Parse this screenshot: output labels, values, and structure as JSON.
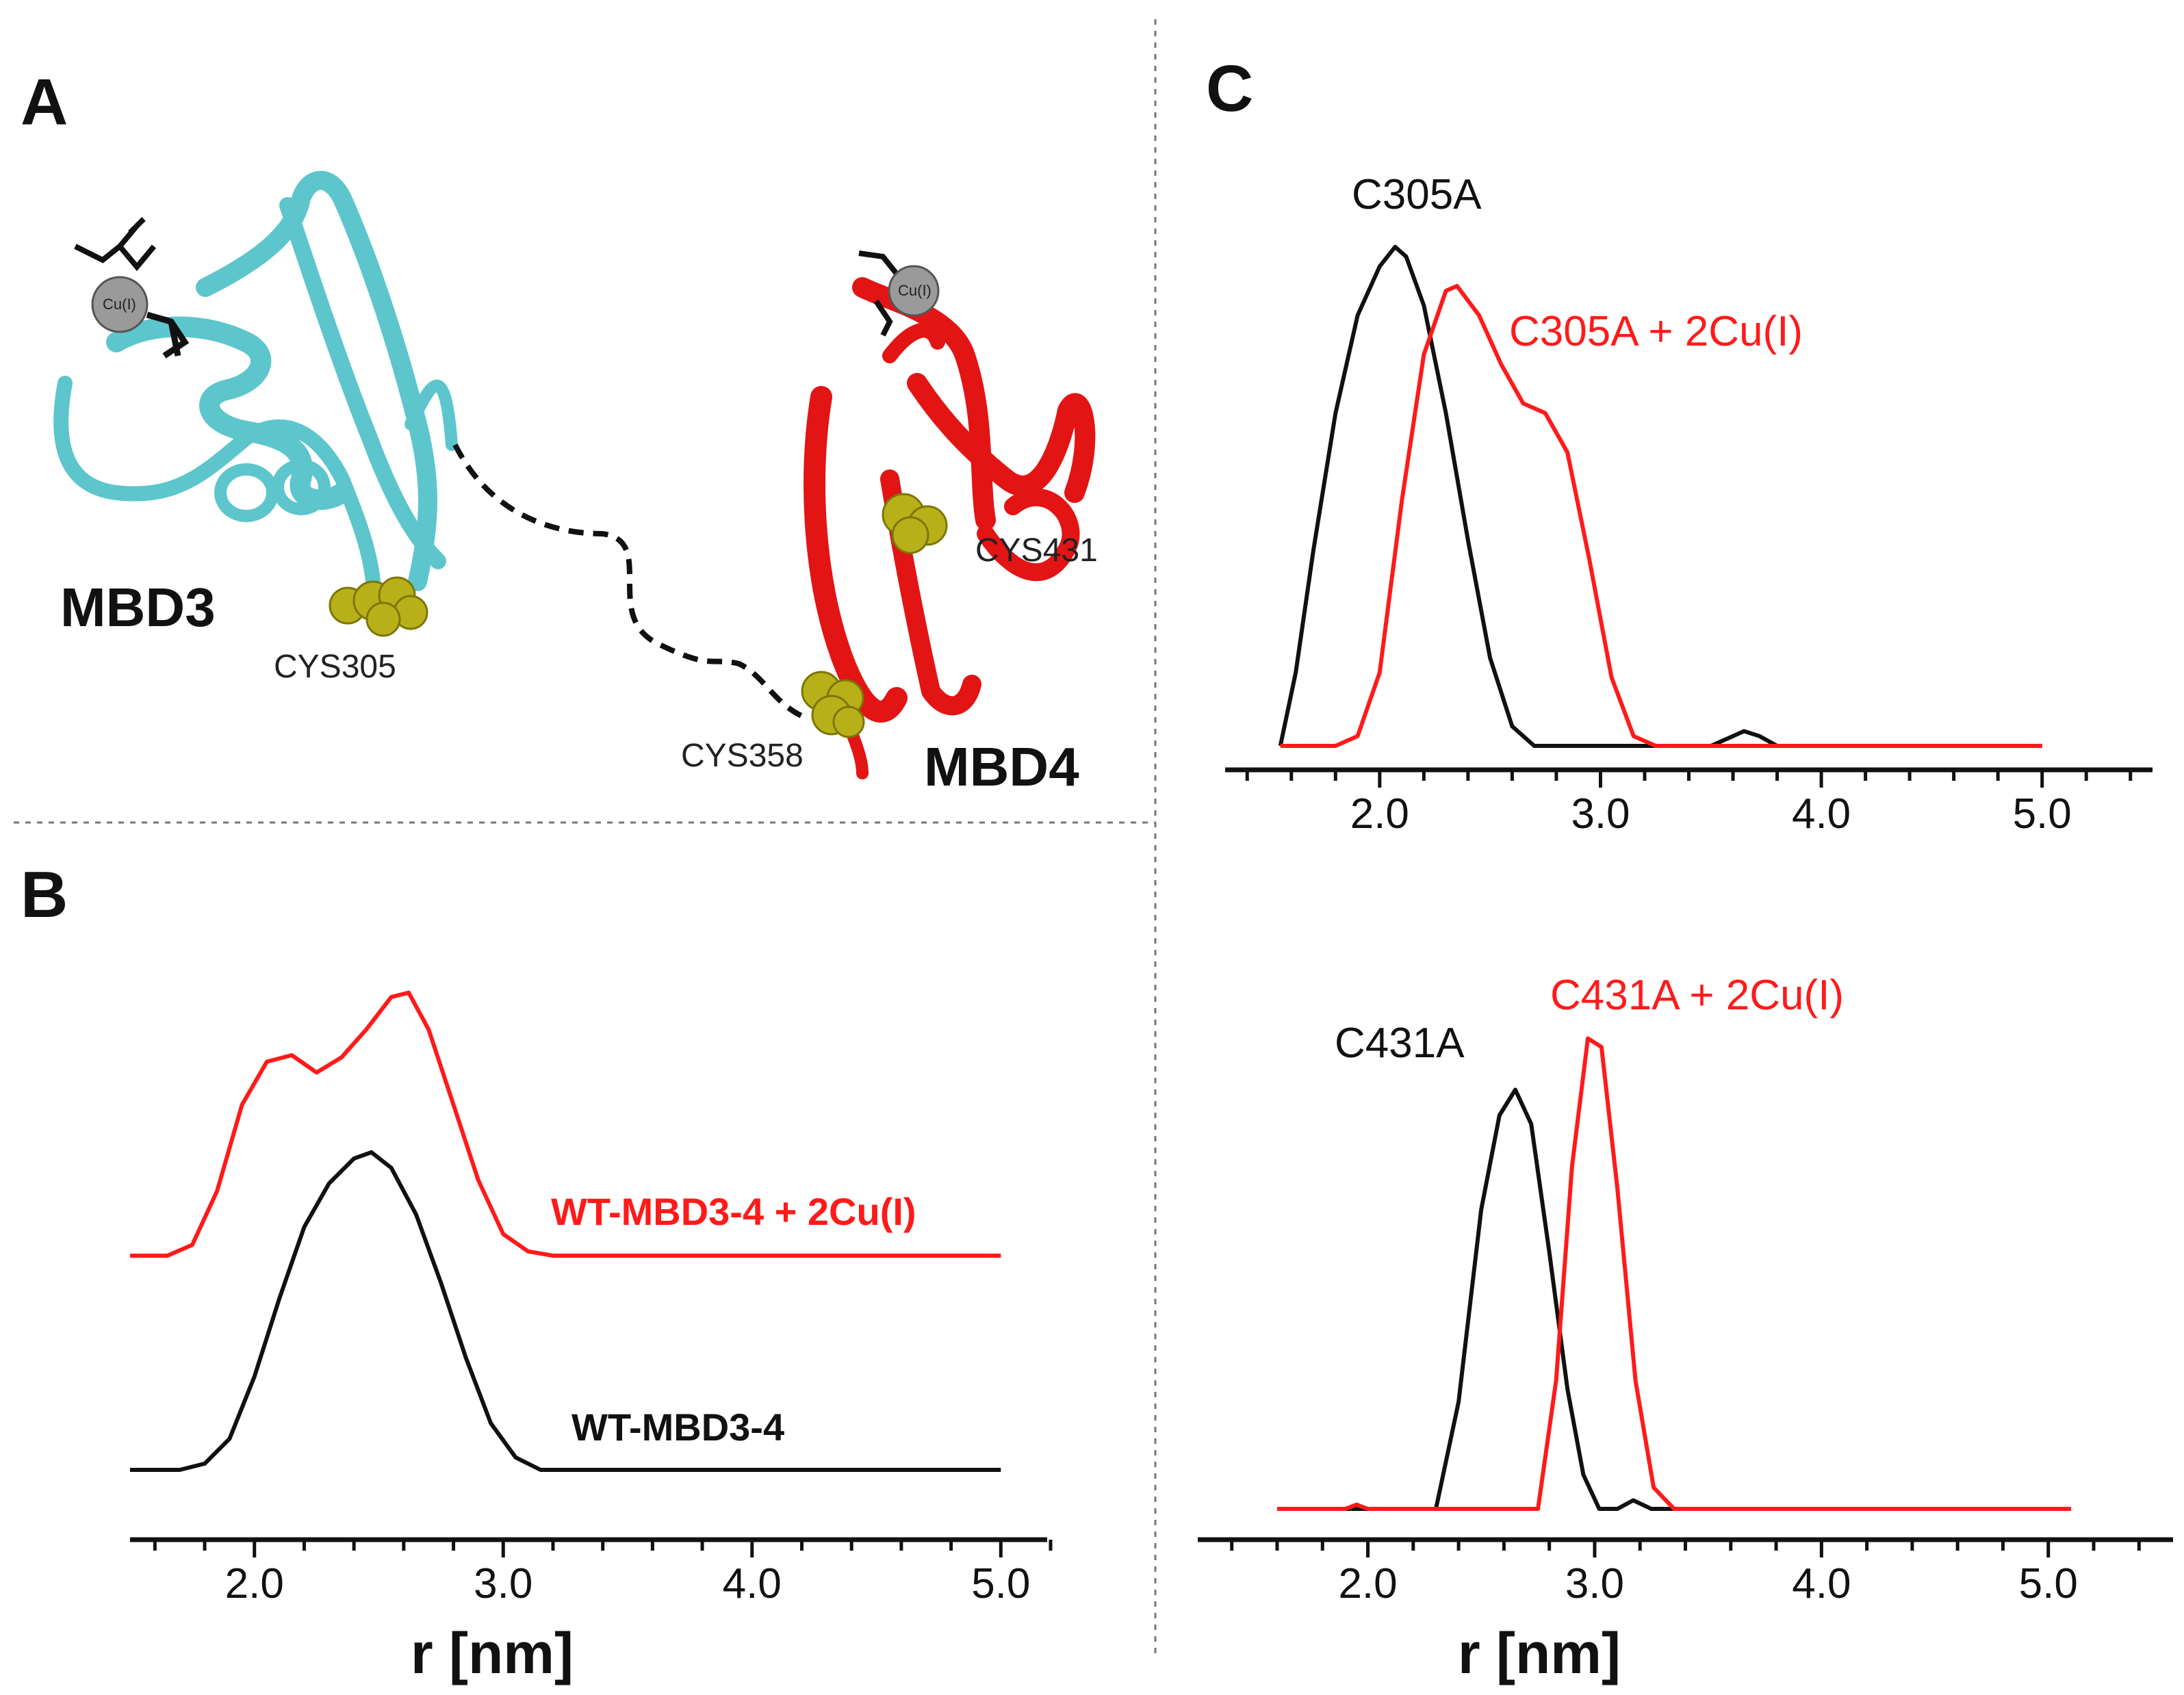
{
  "figure": {
    "panel_labels": [
      "A",
      "B",
      "C"
    ],
    "colors": {
      "black": "#111111",
      "red": "#ff1a1a",
      "cyan": "#5cc6cc",
      "ribbon_red": "#e31414",
      "yellow": "#b8b018"
    }
  },
  "structure": {
    "domains": [
      "MBD3",
      "MBD4"
    ],
    "residues": [
      "CYS305",
      "CYS358",
      "CYS431"
    ],
    "metal_label": "Cu(I)"
  },
  "chart_data": [
    {
      "id": "B",
      "type": "line",
      "title": "",
      "xlabel": "r [nm]",
      "ylabel": "",
      "xlim": [
        1.5,
        5.2
      ],
      "xticks": [
        2.0,
        3.0,
        4.0,
        5.0
      ],
      "xtick_labels": [
        "2.0",
        "3.0",
        "4.0",
        "5.0"
      ],
      "series": [
        {
          "name": "WT-MBD3-4 + 2Cu(I)",
          "color": "#ff1a1a",
          "x": [
            1.5,
            1.65,
            1.75,
            1.85,
            1.95,
            2.05,
            2.15,
            2.25,
            2.35,
            2.45,
            2.55,
            2.62,
            2.7,
            2.8,
            2.9,
            3.0,
            3.1,
            3.2,
            3.5,
            4.0,
            4.5,
            5.0
          ],
          "y": [
            0.0,
            0.0,
            0.05,
            0.3,
            0.7,
            0.9,
            0.93,
            0.85,
            0.92,
            1.05,
            1.2,
            1.22,
            1.05,
            0.7,
            0.35,
            0.1,
            0.02,
            0.0,
            0.0,
            0.0,
            0.0,
            0.0
          ]
        },
        {
          "name": "WT-MBD3-4",
          "color": "#111111",
          "x": [
            1.5,
            1.7,
            1.8,
            1.9,
            2.0,
            2.1,
            2.2,
            2.3,
            2.4,
            2.47,
            2.55,
            2.65,
            2.75,
            2.85,
            2.95,
            3.05,
            3.15,
            3.3,
            3.5,
            4.0,
            4.5,
            5.0
          ],
          "y": [
            0.0,
            0.0,
            0.02,
            0.1,
            0.3,
            0.55,
            0.78,
            0.92,
            1.0,
            1.02,
            0.97,
            0.82,
            0.6,
            0.36,
            0.15,
            0.04,
            0.0,
            0.0,
            0.0,
            0.0,
            0.0,
            0.0
          ]
        }
      ]
    },
    {
      "id": "C-top",
      "type": "line",
      "title": "",
      "xlabel": "",
      "ylabel": "",
      "xlim": [
        1.3,
        5.5
      ],
      "xticks": [
        2.0,
        3.0,
        4.0,
        5.0
      ],
      "xtick_labels": [
        "2.0",
        "3.0",
        "4.0",
        "5.0"
      ],
      "series": [
        {
          "name": "C305A",
          "color": "#111111",
          "x": [
            1.55,
            1.62,
            1.7,
            1.8,
            1.9,
            2.0,
            2.07,
            2.12,
            2.2,
            2.3,
            2.4,
            2.5,
            2.6,
            2.7,
            2.8,
            3.0,
            3.5,
            3.6,
            3.65,
            3.72,
            3.8,
            4.0,
            5.0
          ],
          "y": [
            0.0,
            0.15,
            0.4,
            0.68,
            0.88,
            0.98,
            1.02,
            1.0,
            0.9,
            0.68,
            0.42,
            0.18,
            0.04,
            0.0,
            0.0,
            0.0,
            0.0,
            0.02,
            0.03,
            0.02,
            0.0,
            0.0,
            0.0
          ]
        },
        {
          "name": "C305A + 2Cu(I)",
          "color": "#ff1a1a",
          "x": [
            1.55,
            1.8,
            1.9,
            2.0,
            2.1,
            2.2,
            2.3,
            2.35,
            2.45,
            2.55,
            2.65,
            2.75,
            2.85,
            2.95,
            3.05,
            3.15,
            3.25,
            3.4,
            4.0,
            5.0
          ],
          "y": [
            0.0,
            0.0,
            0.02,
            0.15,
            0.5,
            0.8,
            0.93,
            0.94,
            0.88,
            0.78,
            0.7,
            0.68,
            0.6,
            0.38,
            0.14,
            0.02,
            0.0,
            0.0,
            0.0,
            0.0
          ]
        }
      ]
    },
    {
      "id": "C-bottom",
      "type": "line",
      "title": "",
      "xlabel": "r [nm]",
      "ylabel": "",
      "xlim": [
        1.25,
        5.55
      ],
      "xticks": [
        2.0,
        3.0,
        4.0,
        5.0
      ],
      "xtick_labels": [
        "2.0",
        "3.0",
        "4.0",
        "5.0"
      ],
      "series": [
        {
          "name": "C431A",
          "color": "#111111",
          "x": [
            1.6,
            2.0,
            2.3,
            2.4,
            2.5,
            2.58,
            2.65,
            2.72,
            2.8,
            2.88,
            2.95,
            3.02,
            3.1,
            3.17,
            3.25,
            3.4,
            4.0,
            5.1
          ],
          "y": [
            0.0,
            0.0,
            0.0,
            0.25,
            0.7,
            0.92,
            0.98,
            0.9,
            0.6,
            0.28,
            0.08,
            0.0,
            0.0,
            0.02,
            0.0,
            0.0,
            0.0,
            0.0
          ]
        },
        {
          "name": "C431A + 2Cu(I)",
          "color": "#ff1a1a",
          "x": [
            1.6,
            1.9,
            1.95,
            2.0,
            2.5,
            2.75,
            2.83,
            2.9,
            2.97,
            3.03,
            3.1,
            3.18,
            3.26,
            3.35,
            4.0,
            5.1
          ],
          "y": [
            0.0,
            0.0,
            0.01,
            0.0,
            0.0,
            0.0,
            0.3,
            0.8,
            1.1,
            1.08,
            0.75,
            0.3,
            0.05,
            0.0,
            0.0,
            0.0
          ]
        }
      ]
    }
  ]
}
